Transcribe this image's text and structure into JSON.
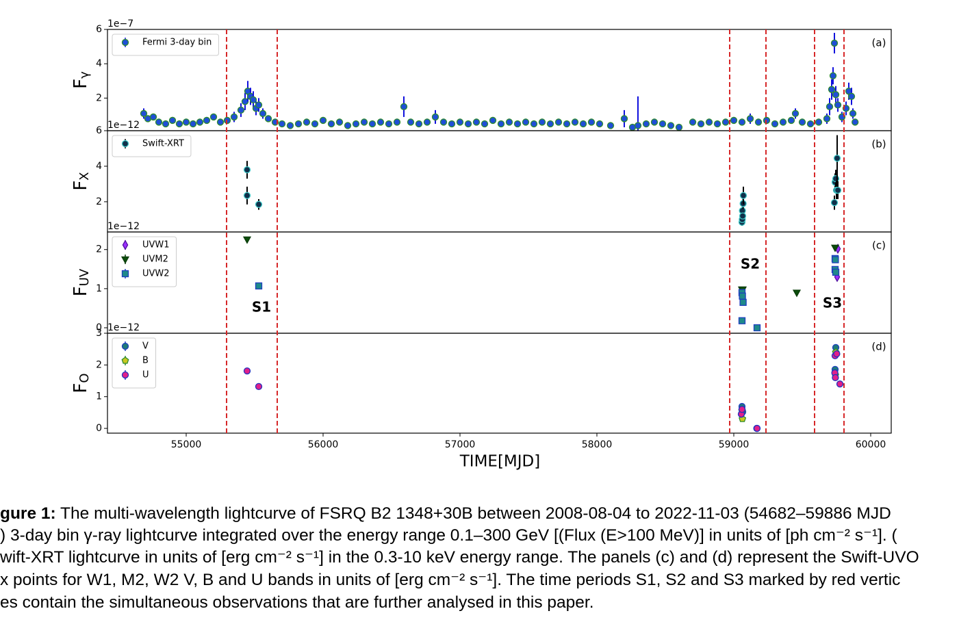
{
  "chart_data": [
    {
      "type": "scatter",
      "panel_label": "(a)",
      "offset_label": "1e−7",
      "ylabel": "F",
      "ylabel_sub": "γ",
      "xlim": [
        54425,
        60150
      ],
      "ylim": [
        0.1,
        6
      ],
      "yticks": [
        2,
        4,
        6
      ],
      "legend": "upper left",
      "series": [
        {
          "name": "Fermi 3-day bin",
          "color": "#1f4fd6",
          "edgecolor": "#2e8b2e",
          "errcolor": "#1010dd",
          "marker": "o",
          "x": [
            54690,
            54720,
            54760,
            54800,
            54850,
            54900,
            54950,
            55000,
            55050,
            55100,
            55150,
            55200,
            55250,
            55300,
            55350,
            55400,
            55430,
            55450,
            55470,
            55490,
            55510,
            55530,
            55560,
            55600,
            55650,
            55700,
            55760,
            55820,
            55880,
            55940,
            56000,
            56060,
            56120,
            56180,
            56240,
            56300,
            56360,
            56420,
            56480,
            56540,
            56590,
            56640,
            56700,
            56760,
            56820,
            56880,
            56940,
            57000,
            57060,
            57120,
            57180,
            57240,
            57300,
            57360,
            57420,
            57480,
            57540,
            57600,
            57660,
            57720,
            57780,
            57840,
            57900,
            57960,
            58020,
            58100,
            58200,
            58260,
            58300,
            58360,
            58420,
            58480,
            58540,
            58600,
            58700,
            58760,
            58820,
            58880,
            58940,
            59000,
            59060,
            59120,
            59180,
            59240,
            59300,
            59360,
            59420,
            59450,
            59500,
            59560,
            59620,
            59680,
            59700,
            59715,
            59725,
            59735,
            59745,
            59760,
            59790,
            59820,
            59840,
            59860,
            59870,
            59886
          ],
          "values": [
            1.1,
            0.8,
            0.9,
            0.6,
            0.5,
            0.7,
            0.5,
            0.6,
            0.5,
            0.6,
            0.7,
            0.9,
            0.6,
            0.7,
            0.9,
            1.3,
            1.8,
            2.4,
            2.1,
            1.9,
            1.4,
            1.6,
            1.1,
            0.8,
            0.6,
            0.5,
            0.4,
            0.5,
            0.6,
            0.5,
            0.7,
            0.5,
            0.6,
            0.4,
            0.5,
            0.6,
            0.5,
            0.6,
            0.5,
            0.6,
            1.5,
            0.6,
            0.5,
            0.6,
            0.9,
            0.6,
            0.5,
            0.6,
            0.5,
            0.6,
            0.5,
            0.7,
            0.5,
            0.6,
            0.5,
            0.6,
            0.5,
            0.6,
            0.5,
            0.6,
            0.5,
            0.6,
            0.5,
            0.6,
            0.5,
            0.4,
            0.8,
            0.3,
            0.4,
            0.5,
            0.6,
            0.5,
            0.4,
            0.3,
            0.6,
            0.5,
            0.6,
            0.5,
            0.6,
            0.7,
            0.6,
            0.8,
            0.6,
            0.7,
            0.5,
            0.6,
            0.7,
            1.1,
            0.6,
            0.5,
            0.6,
            0.8,
            1.5,
            2.5,
            3.3,
            5.2,
            2.2,
            1.6,
            0.9,
            1.4,
            2.4,
            2.1,
            1.1,
            0.6
          ],
          "errors": [
            0.3,
            0.2,
            0.2,
            0.2,
            0.2,
            0.2,
            0.2,
            0.2,
            0.2,
            0.2,
            0.2,
            0.2,
            0.2,
            0.2,
            0.3,
            0.4,
            0.5,
            0.6,
            0.5,
            0.5,
            0.4,
            0.4,
            0.3,
            0.2,
            0.2,
            0.2,
            0.2,
            0.2,
            0.2,
            0.2,
            0.2,
            0.2,
            0.2,
            0.2,
            0.2,
            0.2,
            0.2,
            0.2,
            0.2,
            0.2,
            0.6,
            0.2,
            0.2,
            0.2,
            0.4,
            0.2,
            0.2,
            0.2,
            0.2,
            0.2,
            0.2,
            0.2,
            0.2,
            0.2,
            0.2,
            0.2,
            0.2,
            0.2,
            0.2,
            0.2,
            0.2,
            0.2,
            0.2,
            0.2,
            0.2,
            0.2,
            0.5,
            0.2,
            1.7,
            0.2,
            0.2,
            0.2,
            0.2,
            0.2,
            0.2,
            0.2,
            0.2,
            0.2,
            0.2,
            0.2,
            0.2,
            0.3,
            0.2,
            0.2,
            0.2,
            0.2,
            0.2,
            0.3,
            0.2,
            0.2,
            0.2,
            0.3,
            0.5,
            0.6,
            0.5,
            0.6,
            0.5,
            0.4,
            0.3,
            0.4,
            0.5,
            0.5,
            0.3,
            0.2
          ]
        }
      ]
    },
    {
      "type": "scatter",
      "panel_label": "(b)",
      "offset_label": "1e−12",
      "ylabel": "F",
      "ylabel_sub": "X",
      "xlim": [
        54425,
        60150
      ],
      "ylim": [
        0.3,
        6
      ],
      "yticks": [
        2,
        4,
        6
      ],
      "legend": "upper left",
      "series": [
        {
          "name": "Swift-XRT",
          "color": "#10304a",
          "edgecolor": "#40c8c8",
          "errcolor": "#000000",
          "marker": "o",
          "x": [
            55445,
            55445,
            55530,
            59060,
            59062,
            59063,
            59065,
            59068,
            59070,
            59735,
            59740,
            59745,
            59750,
            59755,
            59760
          ],
          "values": [
            3.8,
            2.35,
            1.85,
            0.85,
            1.0,
            1.5,
            1.2,
            1.9,
            2.35,
            1.95,
            3.1,
            3.3,
            2.65,
            4.45,
            2.65
          ],
          "errors": [
            0.5,
            0.5,
            0.3,
            0.2,
            0.2,
            0.2,
            0.2,
            0.3,
            0.5,
            0.4,
            0.5,
            0.5,
            0.5,
            1.3,
            0.5
          ]
        }
      ]
    },
    {
      "type": "scatter",
      "panel_label": "(c)",
      "offset_label": "1e−12",
      "ylabel": "F",
      "ylabel_sub": "UV",
      "xlim": [
        54425,
        60150
      ],
      "ylim": [
        -0.14,
        2.45
      ],
      "yticks": [
        0,
        1,
        2
      ],
      "legend": "upper left",
      "annotations": [
        "S1",
        "S2",
        "S3"
      ],
      "series": [
        {
          "name": "UVW1",
          "color": "#9b30ff",
          "edgecolor": "#5010a0",
          "marker": "d",
          "x": [
            59760,
            59755
          ],
          "values": [
            2.02,
            1.3
          ]
        },
        {
          "name": "UVM2",
          "color": "#0b4d0b",
          "edgecolor": "#0b3d0b",
          "marker": "v",
          "x": [
            55445,
            59060,
            59065,
            59460,
            59740
          ],
          "values": [
            2.26,
            0.98,
            0.98,
            0.9,
            2.05
          ]
        },
        {
          "name": "UVW2",
          "color": "#1f8a8a",
          "edgecolor": "#1f3fbf",
          "marker": "s",
          "x": [
            55530,
            59060,
            59063,
            59068,
            59060,
            59170,
            59740,
            59742,
            59740,
            59745
          ],
          "values": [
            1.07,
            0.9,
            0.81,
            0.65,
            0.18,
            0.0,
            1.77,
            1.74,
            1.49,
            1.42
          ]
        }
      ]
    },
    {
      "type": "scatter",
      "panel_label": "(d)",
      "offset_label": "1e−12",
      "ylabel": "F",
      "ylabel_sub": "O",
      "xlim": [
        54425,
        60150
      ],
      "ylim": [
        -0.15,
        3
      ],
      "yticks": [
        0,
        1,
        2,
        3
      ],
      "legend": "upper left",
      "xticks": [
        55000,
        56000,
        57000,
        58000,
        59000,
        60000
      ],
      "xlabel": "TIME[MJD]",
      "series": [
        {
          "name": "V",
          "color": "#1f7a7a",
          "edgecolor": "#1f3fbf",
          "marker": "o",
          "x": [
            59060,
            59065,
            59745,
            59740,
            59168
          ],
          "values": [
            0.69,
            0.52,
            2.55,
            1.86,
            0.0
          ]
        },
        {
          "name": "B",
          "color": "#c8c820",
          "edgecolor": "#2e8b2e",
          "marker": "p",
          "x": [
            59063,
            59060,
            59745,
            59742
          ],
          "values": [
            0.3,
            0.56,
            2.4,
            1.68
          ]
        },
        {
          "name": "U",
          "color": "#e0208a",
          "edgecolor": "#2030c0",
          "marker": "o",
          "x": [
            55445,
            55530,
            59055,
            59060,
            59170,
            59740,
            59752,
            59738,
            59742,
            59775
          ],
          "values": [
            1.81,
            1.32,
            0.45,
            0.6,
            0.0,
            2.29,
            2.35,
            1.75,
            1.6,
            1.4
          ]
        }
      ]
    }
  ],
  "vlines": {
    "x": [
      55295,
      55665,
      58970,
      59235,
      59590,
      59805
    ],
    "color": "#d62728"
  },
  "caption": {
    "label": "gure 1:",
    "lines": [
      " The multi-wavelength lightcurve of FSRQ B2 1348+30B between 2008-08-04 to 2022-11-03 (54682–59886 MJD",
      ") 3-day bin γ-ray lightcurve integrated over the energy range 0.1–300 GeV [(Flux (E>100 MeV)] in units of [ph cm⁻² s⁻¹]. (",
      "wift-XRT lightcurve in units of [erg cm⁻² s⁻¹] in the 0.3-10 keV energy range. The panels (c) and (d) represent the Swift-UVO",
      "x points for W1, M2, W2 V, B and U bands in units of [erg cm⁻² s⁻¹]. The time periods S1, S2 and S3 marked by red vertic",
      "es contain the simultaneous observations that are further analysed in this paper."
    ]
  }
}
